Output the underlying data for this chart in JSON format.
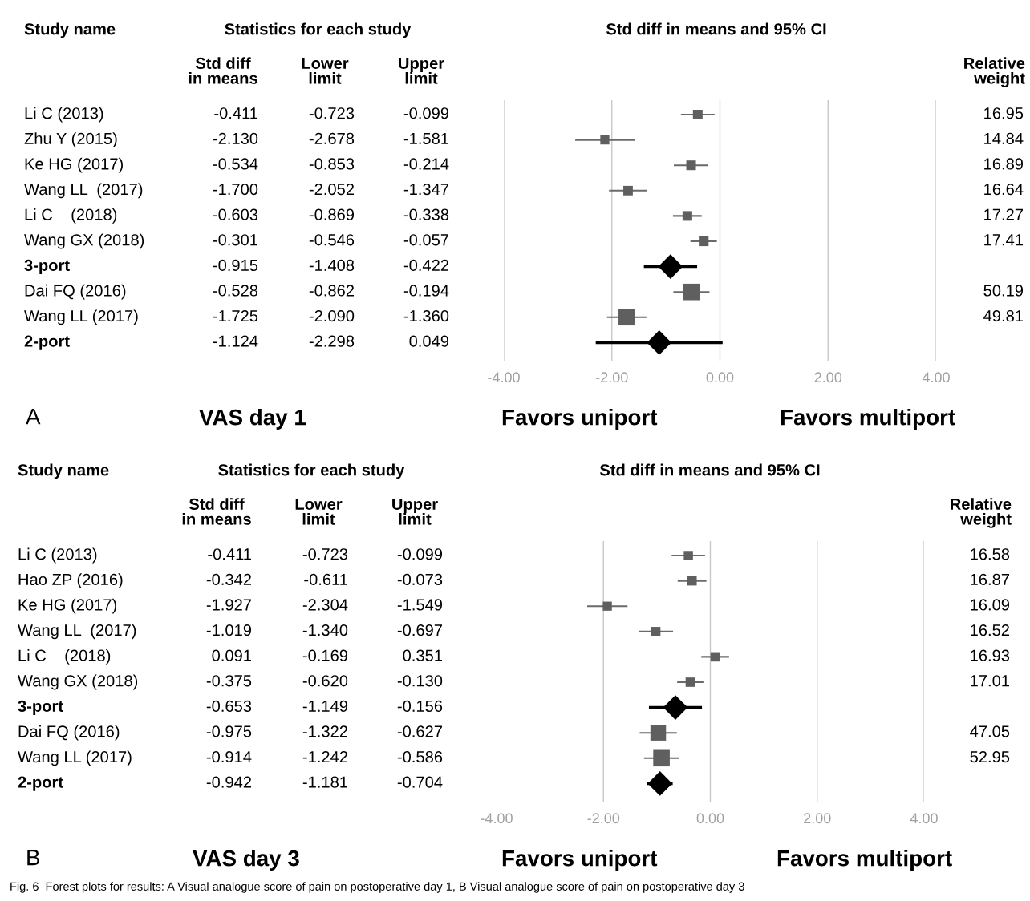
{
  "chart_data": [
    {
      "type": "other",
      "annotations": [
        "Study name",
        "Statistics for each study",
        "Std diff\nin means",
        "Lower\nlimit",
        "Upper\nlimit",
        "Relative\nweight",
        "A",
        "VAS day 1",
        "Li C (2013)",
        "-0.411",
        "-0.723",
        "-0.099",
        "16.95",
        "Zhu Y (2015)",
        "-2.130",
        "-2.678",
        "-1.581",
        "14.84",
        "Ke HG (2017)",
        "-0.534",
        "-0.853",
        "-0.214",
        "16.89",
        "Wang LL  (2017)",
        "-1.700",
        "-2.052",
        "-1.347",
        "16.64",
        "Li C    (2018)",
        "-0.603",
        "-0.869",
        "-0.338",
        "17.27",
        "Wang GX (2018)",
        "-0.301",
        "-0.546",
        "-0.057",
        "17.41",
        "3-port",
        "-0.915",
        "-1.408",
        "-0.422",
        null,
        "Dai FQ (2016)",
        "-0.528",
        "-0.862",
        "-0.194",
        "50.19",
        "Wang LL (2017)",
        "-1.725",
        "-2.090",
        "-1.360",
        "49.81",
        "2-port",
        "-1.124",
        "-2.298",
        "0.049",
        null
      ]
    },
    {
      "type": "scatter",
      "orientation": "horizontal",
      "grid": "x",
      "categories": [
        null,
        null,
        null,
        null,
        null,
        null,
        null,
        null,
        null,
        null
      ],
      "series": [
        {
          "color": "#5f5f5f",
          "marker": "square",
          "values": [
            -0.411,
            -2.13,
            -0.534,
            -1.7,
            -0.603,
            -0.301,
            null,
            -0.528,
            -1.725,
            null
          ],
          "errors": [
            [
              -0.723,
              -0.099
            ],
            [
              -2.678,
              -1.581
            ],
            [
              -0.853,
              -0.214
            ],
            [
              -2.052,
              -1.347
            ],
            [
              -0.869,
              -0.338
            ],
            [
              -0.546,
              -0.057
            ],
            null,
            [
              -0.862,
              -0.194
            ],
            [
              -2.09,
              -1.36
            ],
            null
          ],
          "sizes": [
            0.34,
            0.3,
            0.34,
            0.33,
            0.34,
            0.35,
            null,
            1,
            0.99,
            null
          ]
        },
        {
          "color": "#000000",
          "marker": "diamond",
          "values": [
            null,
            null,
            null,
            null,
            null,
            null,
            -0.915,
            null,
            null,
            -1.124
          ],
          "errors": [
            null,
            null,
            null,
            null,
            null,
            null,
            [
              -1.408,
              -0.422
            ],
            null,
            null,
            [
              -2.298,
              0.049
            ]
          ]
        }
      ],
      "xlim": [
        -4,
        4
      ],
      "xticks": [
        {
          "value": -4,
          "label": "-4.00"
        },
        {
          "value": -2,
          "label": "-2.00"
        },
        {
          "value": 0,
          "label": "0.00"
        },
        {
          "value": 2,
          "label": "2.00"
        },
        {
          "value": 4,
          "label": "4.00"
        }
      ],
      "annotations": [
        "Std diff in means and 95% CI",
        "Favors uniport",
        "Favors multiport"
      ]
    },
    {
      "type": "other",
      "annotations": [
        "Study name",
        "Statistics for each study",
        "Std diff\nin means",
        "Lower\nlimit",
        "Upper\nlimit",
        "Relative\nweight",
        "B",
        "VAS day 3",
        "Li C (2013)",
        "-0.411",
        "-0.723",
        "-0.099",
        "16.58",
        "Hao ZP (2016)",
        "-0.342",
        "-0.611",
        "-0.073",
        "16.87",
        "Ke HG (2017)",
        "-1.927",
        "-2.304",
        "-1.549",
        "16.09",
        "Wang LL  (2017)",
        "-1.019",
        "-1.340",
        "-0.697",
        "16.52",
        "Li C    (2018)",
        "0.091",
        "-0.169",
        "0.351",
        "16.93",
        "Wang GX (2018)",
        "-0.375",
        "-0.620",
        "-0.130",
        "17.01",
        "3-port",
        "-0.653",
        "-1.149",
        "-0.156",
        null,
        "Dai FQ (2016)",
        "-0.975",
        "-1.322",
        "-0.627",
        "47.05",
        "Wang LL (2017)",
        "-0.914",
        "-1.242",
        "-0.586",
        "52.95",
        "2-port",
        "-0.942",
        "-1.181",
        "-0.704",
        null,
        "Fig. 6  Forest plots for results: A Visual analogue score of pain on postoperative day 1, B Visual analogue score of pain on postoperative day 3"
      ]
    },
    {
      "type": "scatter",
      "orientation": "horizontal",
      "grid": "x",
      "categories": [
        null,
        null,
        null,
        null,
        null,
        null,
        null,
        null,
        null,
        null
      ],
      "series": [
        {
          "color": "#5f5f5f",
          "marker": "square",
          "values": [
            -0.411,
            -0.342,
            -1.927,
            -1.019,
            0.091,
            -0.375,
            null,
            -0.975,
            -0.914,
            null
          ],
          "errors": [
            [
              -0.723,
              -0.099
            ],
            [
              -0.611,
              -0.073
            ],
            [
              -2.304,
              -1.549
            ],
            [
              -1.34,
              -0.697
            ],
            [
              -0.169,
              0.351
            ],
            [
              -0.62,
              -0.13
            ],
            null,
            [
              -1.322,
              -0.627
            ],
            [
              -1.242,
              -0.586
            ],
            null
          ],
          "sizes": [
            0.31,
            0.32,
            0.3,
            0.31,
            0.32,
            0.32,
            null,
            0.89,
            1,
            null
          ]
        },
        {
          "color": "#000000",
          "marker": "diamond",
          "values": [
            null,
            null,
            null,
            null,
            null,
            null,
            -0.653,
            null,
            null,
            -0.942
          ],
          "errors": [
            null,
            null,
            null,
            null,
            null,
            null,
            [
              -1.149,
              -0.156
            ],
            null,
            null,
            [
              -1.181,
              -0.704
            ]
          ]
        }
      ],
      "xlim": [
        -4,
        4
      ],
      "xticks": [
        {
          "value": -4,
          "label": "-4.00"
        },
        {
          "value": -2,
          "label": "-2.00"
        },
        {
          "value": 0,
          "label": "0.00"
        },
        {
          "value": 2,
          "label": "2.00"
        },
        {
          "value": 4,
          "label": "4.00"
        }
      ],
      "annotations": [
        "Std diff in means and 95% CI",
        "Favors uniport",
        "Favors multiport"
      ]
    }
  ]
}
